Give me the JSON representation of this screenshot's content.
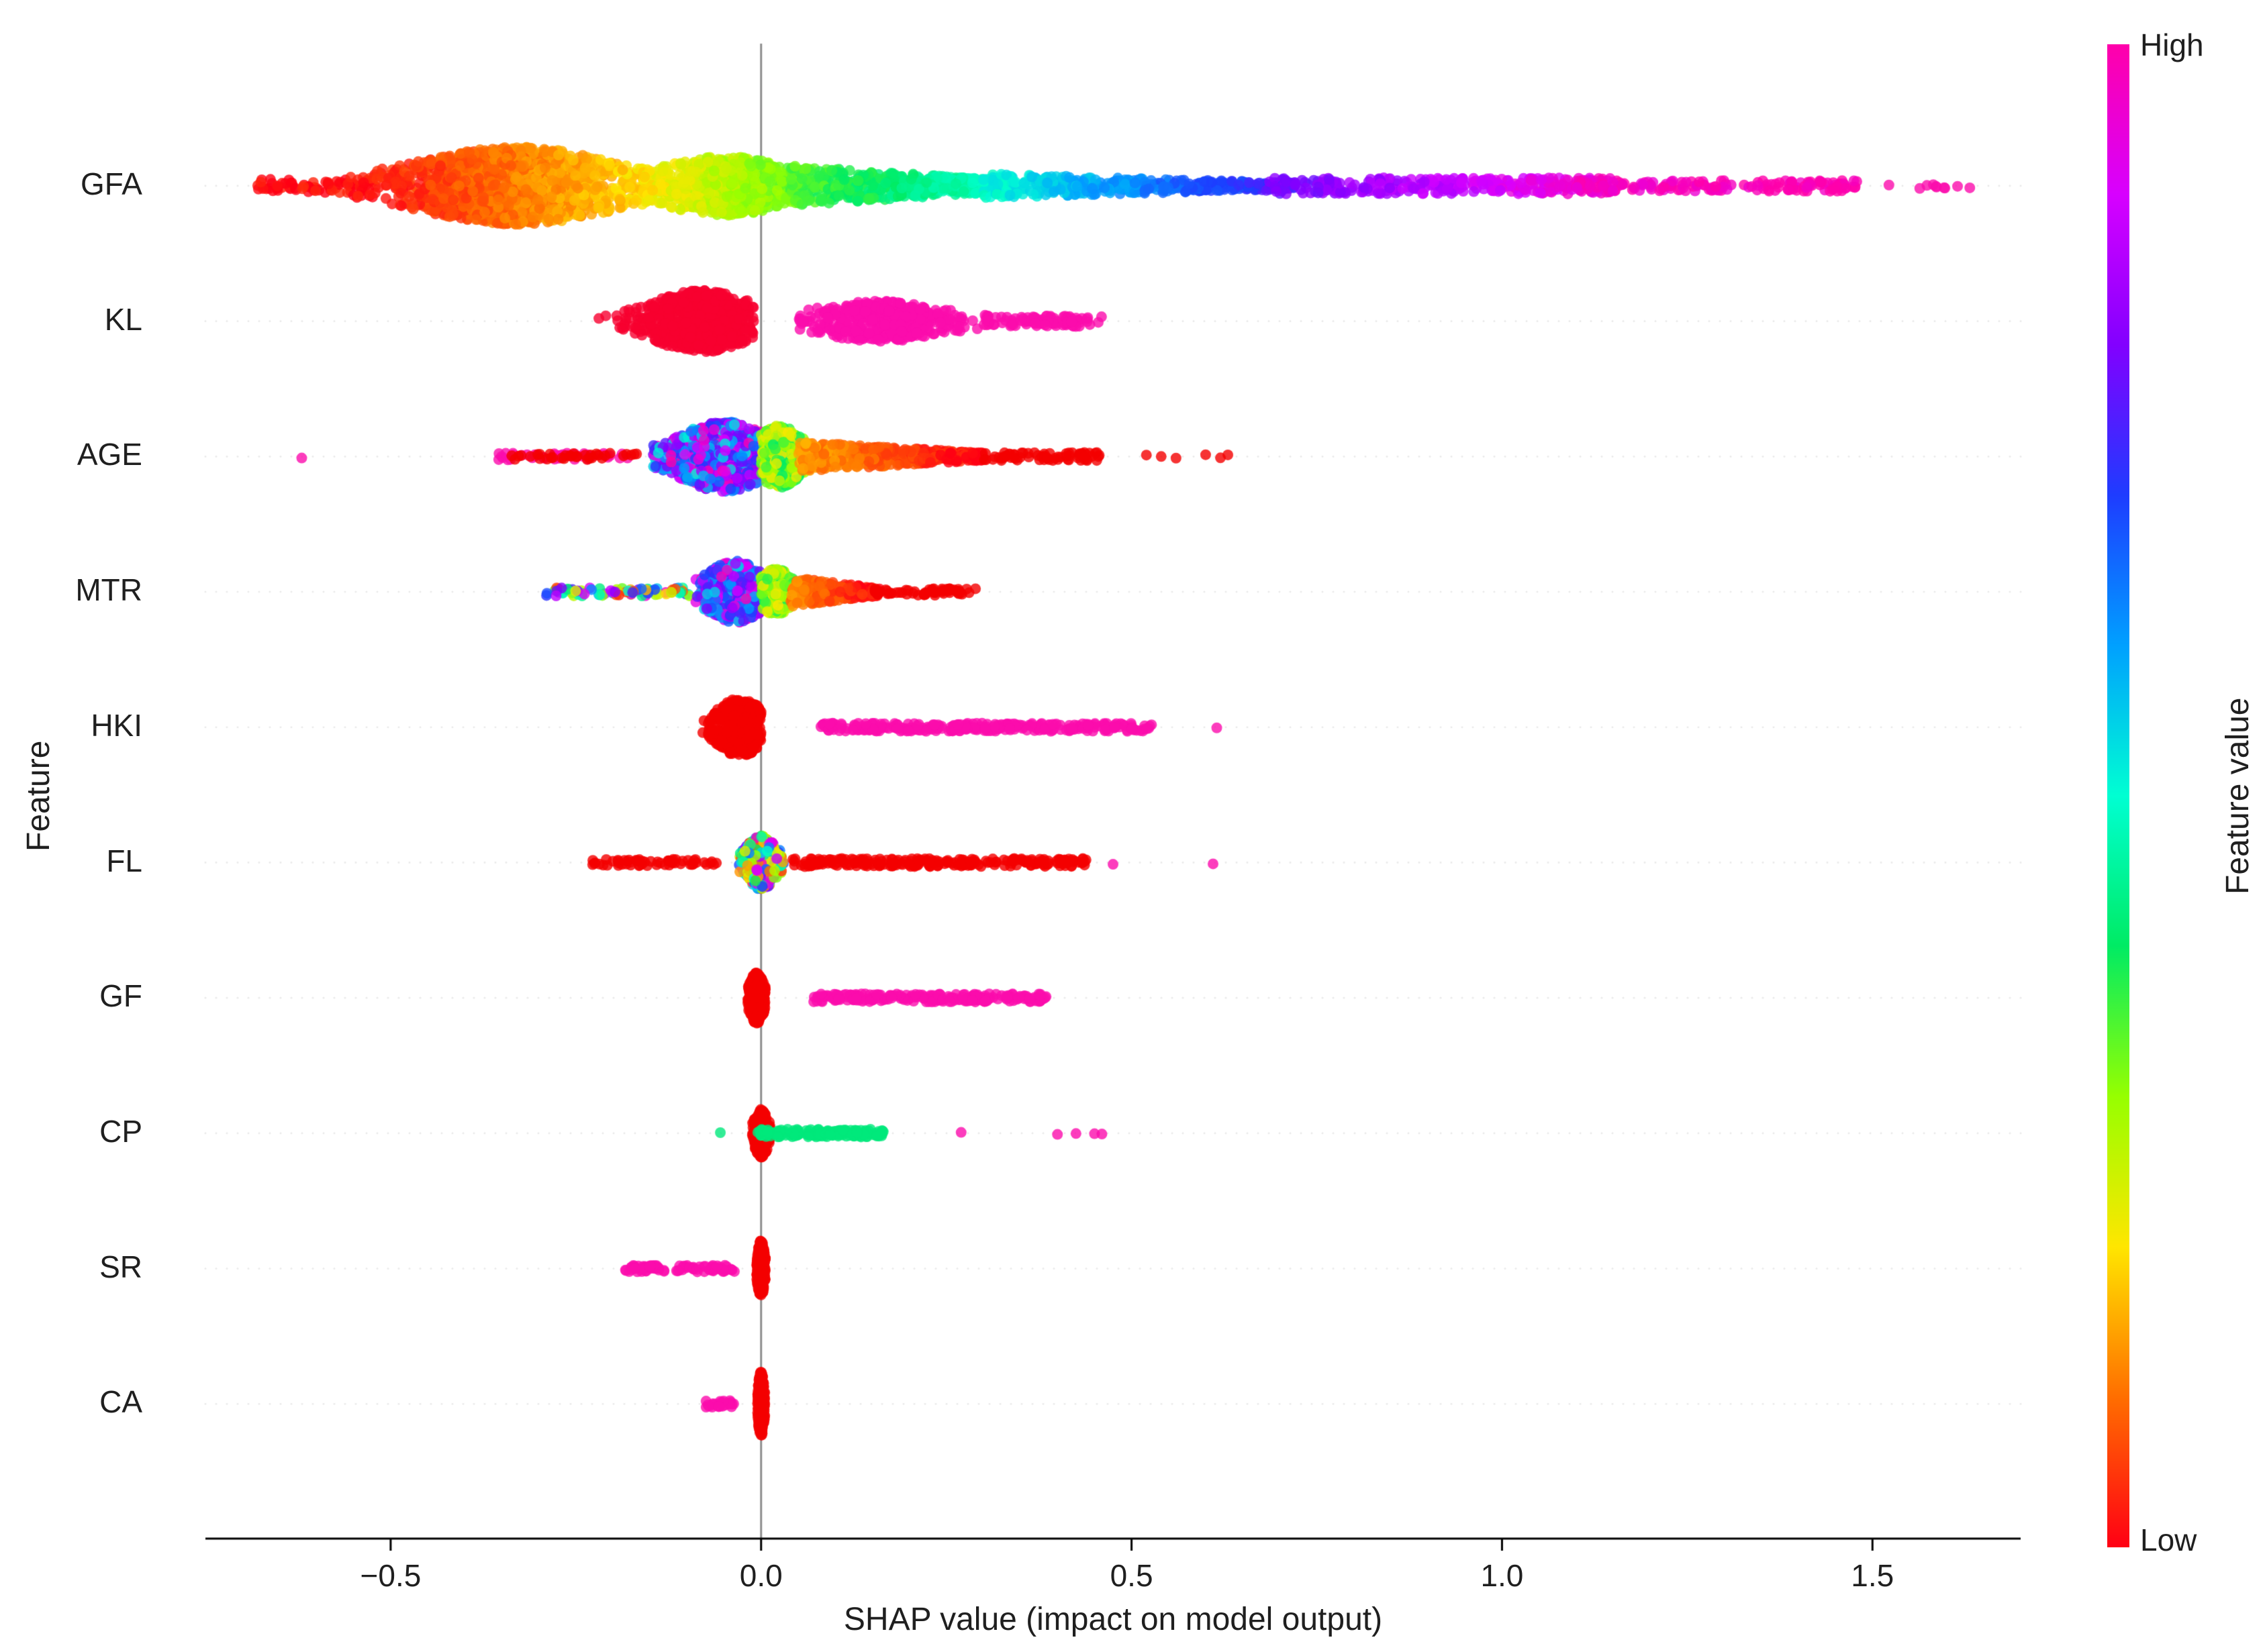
{
  "figure": {
    "background": "#ffffff",
    "zero_line_color": "#8c8c8c",
    "axis_color": "#000000",
    "guide_dot_color": "#cfcfcf"
  },
  "chart_data": {
    "type": "scatter",
    "subtype": "shap-beeswarm-summary",
    "title": "",
    "xlabel": "SHAP value (impact on model output)",
    "ylabel": "Feature",
    "xlim": [
      -0.75,
      1.7
    ],
    "grid": false,
    "zero_line": true,
    "xticks": [
      {
        "value": -0.5,
        "label": "−0.5"
      },
      {
        "value": 0.0,
        "label": "0.0"
      },
      {
        "value": 0.5,
        "label": "0.5"
      },
      {
        "value": 1.0,
        "label": "1.0"
      },
      {
        "value": 1.5,
        "label": "1.5"
      }
    ],
    "colorbar": {
      "title": "Feature value",
      "high_label": "High",
      "low_label": "Low",
      "stops": [
        {
          "t": 0.0,
          "rgb": [
            255,
            0,
            20
          ]
        },
        {
          "t": 0.1,
          "rgb": [
            255,
            110,
            0
          ]
        },
        {
          "t": 0.2,
          "rgb": [
            255,
            230,
            0
          ]
        },
        {
          "t": 0.3,
          "rgb": [
            150,
            255,
            0
          ]
        },
        {
          "t": 0.4,
          "rgb": [
            0,
            235,
            100
          ]
        },
        {
          "t": 0.5,
          "rgb": [
            0,
            255,
            210
          ]
        },
        {
          "t": 0.6,
          "rgb": [
            0,
            160,
            255
          ]
        },
        {
          "t": 0.7,
          "rgb": [
            30,
            60,
            255
          ]
        },
        {
          "t": 0.8,
          "rgb": [
            130,
            0,
            255
          ]
        },
        {
          "t": 0.9,
          "rgb": [
            215,
            0,
            255
          ]
        },
        {
          "t": 1.0,
          "rgb": [
            255,
            0,
            170
          ]
        }
      ]
    },
    "features": [
      {
        "label": "GFA",
        "clusters": [
          {
            "shape": "strip",
            "x0": -0.68,
            "x1": -0.52,
            "n": 70,
            "jitter": 10,
            "color": {
              "mode": "map",
              "t0": 0.0,
              "t1": 0.02
            }
          },
          {
            "shape": "violin",
            "x0": -0.56,
            "x1": -0.14,
            "center": -0.33,
            "sigma": 0.09,
            "n": 1400,
            "jitter": 58,
            "color": {
              "mode": "map",
              "t0": 0.0,
              "t1": 0.2
            }
          },
          {
            "shape": "violin",
            "x0": -0.16,
            "x1": 0.06,
            "center": -0.05,
            "sigma": 0.06,
            "n": 650,
            "jitter": 44,
            "color": {
              "mode": "map",
              "t0": 0.2,
              "t1": 0.34
            }
          },
          {
            "shape": "strip",
            "x0": 0.04,
            "x1": 0.34,
            "n": 520,
            "jitter": 30,
            "taper": "right",
            "color": {
              "mode": "map",
              "t0": 0.34,
              "t1": 0.5
            }
          },
          {
            "shape": "strip",
            "x0": 0.3,
            "x1": 0.72,
            "n": 420,
            "jitter": 18,
            "taper": "right",
            "color": {
              "mode": "map",
              "t0": 0.5,
              "t1": 0.75
            }
          },
          {
            "shape": "strip",
            "x0": 0.68,
            "x1": 1.15,
            "n": 320,
            "jitter": 12,
            "color": {
              "mode": "map",
              "t0": 0.78,
              "t1": 0.97
            }
          },
          {
            "shape": "strip",
            "x0": 1.1,
            "x1": 1.48,
            "n": 160,
            "jitter": 8,
            "color": {
              "mode": "map",
              "t0": 0.97,
              "t1": 1.0
            }
          },
          {
            "shape": "strip",
            "x0": 1.52,
            "x1": 1.64,
            "n": 10,
            "jitter": 4,
            "color": {
              "mode": "fixed",
              "hex": "#fb0dac"
            }
          }
        ]
      },
      {
        "label": "KL",
        "clusters": [
          {
            "shape": "violin",
            "x0": -0.22,
            "x1": -0.01,
            "center": -0.08,
            "sigma": 0.045,
            "n": 700,
            "jitter": 46,
            "color": {
              "mode": "fixed",
              "hex": "#f80030"
            }
          },
          {
            "shape": "violin",
            "x0": 0.05,
            "x1": 0.33,
            "center": 0.16,
            "sigma": 0.06,
            "n": 430,
            "jitter": 30,
            "color": {
              "mode": "fixed",
              "hex": "#fb0dac"
            }
          },
          {
            "shape": "strip",
            "x0": 0.3,
            "x1": 0.46,
            "n": 90,
            "jitter": 8,
            "color": {
              "mode": "fixed",
              "hex": "#fb0dac"
            }
          }
        ]
      },
      {
        "label": "AGE",
        "clusters": [
          {
            "shape": "dots",
            "xs": [
              -0.62
            ],
            "jitter": 3,
            "color": {
              "mode": "fixed",
              "hex": "#fb0dac"
            }
          },
          {
            "shape": "strip",
            "x0": -0.36,
            "x1": -0.17,
            "n": 45,
            "jitter": 5,
            "color": {
              "mode": "fixed",
              "hex": "#fb0dac"
            }
          },
          {
            "shape": "strip",
            "x0": -0.34,
            "x1": -0.16,
            "n": 35,
            "jitter": 5,
            "color": {
              "mode": "fixed",
              "hex": "#f40000"
            }
          },
          {
            "shape": "violin",
            "x0": -0.15,
            "x1": 0.005,
            "center": -0.05,
            "sigma": 0.04,
            "n": 820,
            "jitter": 52,
            "color": {
              "mode": "random",
              "t0": 0.5,
              "t1": 1.0
            }
          },
          {
            "shape": "violin",
            "x0": 0.0,
            "x1": 0.07,
            "center": 0.025,
            "sigma": 0.02,
            "n": 360,
            "jitter": 46,
            "color": {
              "mode": "random",
              "t0": 0.2,
              "t1": 0.42
            }
          },
          {
            "shape": "strip",
            "x0": 0.05,
            "x1": 0.3,
            "n": 460,
            "jitter": 22,
            "taper": "right",
            "color": {
              "mode": "map",
              "t0": 0.14,
              "t1": 0.0
            }
          },
          {
            "shape": "strip",
            "x0": 0.3,
            "x1": 0.46,
            "n": 70,
            "jitter": 6,
            "color": {
              "mode": "fixed",
              "hex": "#f40000"
            }
          },
          {
            "shape": "dots",
            "xs": [
              0.52,
              0.54,
              0.56,
              0.6,
              0.62,
              0.63
            ],
            "jitter": 3,
            "color": {
              "mode": "fixed",
              "hex": "#f40000"
            }
          }
        ]
      },
      {
        "label": "MTR",
        "clusters": [
          {
            "shape": "strip",
            "x0": -0.29,
            "x1": -0.09,
            "n": 85,
            "jitter": 6,
            "color": {
              "mode": "random",
              "t0": 0.0,
              "t1": 1.0
            }
          },
          {
            "shape": "violin",
            "x0": -0.09,
            "x1": 0.0,
            "center": -0.035,
            "sigma": 0.025,
            "n": 520,
            "jitter": 46,
            "color": {
              "mode": "random",
              "t0": 0.55,
              "t1": 0.98
            }
          },
          {
            "shape": "violin",
            "x0": 0.0,
            "x1": 0.055,
            "center": 0.02,
            "sigma": 0.016,
            "n": 280,
            "jitter": 34,
            "color": {
              "mode": "random",
              "t0": 0.2,
              "t1": 0.4
            }
          },
          {
            "shape": "strip",
            "x0": 0.04,
            "x1": 0.16,
            "n": 260,
            "jitter": 22,
            "taper": "right",
            "color": {
              "mode": "map",
              "t0": 0.12,
              "t1": 0.0
            }
          },
          {
            "shape": "strip",
            "x0": 0.15,
            "x1": 0.29,
            "n": 60,
            "jitter": 5,
            "color": {
              "mode": "fixed",
              "hex": "#f40000"
            }
          }
        ]
      },
      {
        "label": "HKI",
        "clusters": [
          {
            "shape": "violin",
            "x0": -0.08,
            "x1": 0.0,
            "center": -0.028,
            "sigma": 0.02,
            "n": 560,
            "jitter": 44,
            "color": {
              "mode": "fixed",
              "hex": "#f40000"
            }
          },
          {
            "shape": "strip",
            "x0": 0.08,
            "x1": 0.53,
            "n": 280,
            "jitter": 6,
            "color": {
              "mode": "fixed",
              "hex": "#fb0dac"
            }
          },
          {
            "shape": "dots",
            "xs": [
              0.615
            ],
            "jitter": 3,
            "color": {
              "mode": "fixed",
              "hex": "#fb0dac"
            }
          }
        ]
      },
      {
        "label": "FL",
        "clusters": [
          {
            "shape": "strip",
            "x0": -0.23,
            "x1": -0.06,
            "n": 60,
            "jitter": 5,
            "color": {
              "mode": "fixed",
              "hex": "#f40000"
            }
          },
          {
            "shape": "violin",
            "x0": -0.03,
            "x1": 0.03,
            "center": 0.0,
            "sigma": 0.013,
            "n": 420,
            "jitter": 40,
            "color": {
              "mode": "random",
              "t0": 0.0,
              "t1": 1.0
            }
          },
          {
            "shape": "strip",
            "x0": 0.04,
            "x1": 0.44,
            "n": 230,
            "jitter": 6,
            "color": {
              "mode": "fixed",
              "hex": "#f40000"
            }
          },
          {
            "shape": "dots",
            "xs": [
              0.475,
              0.61
            ],
            "jitter": 3,
            "color": {
              "mode": "fixed",
              "hex": "#fb0dac"
            }
          }
        ]
      },
      {
        "label": "GF",
        "clusters": [
          {
            "shape": "violin",
            "x0": -0.018,
            "x1": 0.006,
            "center": -0.006,
            "sigma": 0.006,
            "n": 460,
            "jitter": 38,
            "color": {
              "mode": "fixed",
              "hex": "#f40000"
            }
          },
          {
            "shape": "strip",
            "x0": 0.07,
            "x1": 0.385,
            "n": 210,
            "jitter": 6,
            "color": {
              "mode": "fixed",
              "hex": "#fb0dac"
            }
          }
        ]
      },
      {
        "label": "CP",
        "clusters": [
          {
            "shape": "violin",
            "x0": -0.012,
            "x1": 0.012,
            "center": 0.0,
            "sigma": 0.006,
            "n": 260,
            "jitter": 36,
            "color": {
              "mode": "fixed",
              "hex": "#f40000"
            }
          },
          {
            "shape": "strip",
            "x0": -0.005,
            "x1": 0.165,
            "n": 160,
            "jitter": 6,
            "color": {
              "mode": "fixed",
              "hex": "#00e97c"
            }
          },
          {
            "shape": "dots",
            "xs": [
              -0.055
            ],
            "jitter": 3,
            "color": {
              "mode": "fixed",
              "hex": "#00e97c"
            }
          },
          {
            "shape": "dots",
            "xs": [
              0.27,
              0.4,
              0.425,
              0.45,
              0.46
            ],
            "jitter": 3,
            "color": {
              "mode": "fixed",
              "hex": "#fb0dac"
            }
          }
        ]
      },
      {
        "label": "SR",
        "clusters": [
          {
            "shape": "violin",
            "x0": -0.006,
            "x1": 0.006,
            "center": 0.0,
            "sigma": 0.003,
            "n": 300,
            "jitter": 42,
            "color": {
              "mode": "fixed",
              "hex": "#f40000"
            }
          },
          {
            "shape": "strip",
            "x0": -0.185,
            "x1": -0.13,
            "n": 40,
            "jitter": 5,
            "color": {
              "mode": "fixed",
              "hex": "#fb0dac"
            }
          },
          {
            "shape": "strip",
            "x0": -0.115,
            "x1": -0.03,
            "n": 45,
            "jitter": 5,
            "color": {
              "mode": "fixed",
              "hex": "#fb0dac"
            }
          }
        ]
      },
      {
        "label": "CA",
        "clusters": [
          {
            "shape": "violin",
            "x0": -0.005,
            "x1": 0.005,
            "center": 0.0,
            "sigma": 0.0025,
            "n": 340,
            "jitter": 48,
            "color": {
              "mode": "fixed",
              "hex": "#f40000"
            }
          },
          {
            "shape": "strip",
            "x0": -0.075,
            "x1": -0.035,
            "n": 25,
            "jitter": 5,
            "color": {
              "mode": "fixed",
              "hex": "#fb0dac"
            }
          }
        ]
      }
    ]
  }
}
